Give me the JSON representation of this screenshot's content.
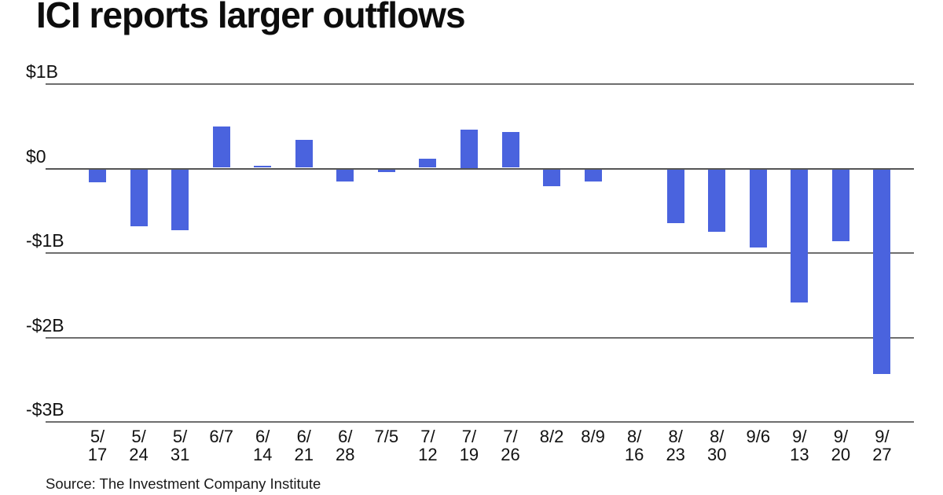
{
  "title": "ICI reports larger outflows",
  "source": "Source: The Investment Company Institute",
  "colors": {
    "bar": "#4a63de",
    "gridline": "#6e6e6e",
    "zero_line": "#555555",
    "text": "#111111",
    "title_text": "#0d0d0d",
    "background": "#ffffff"
  },
  "chart_data": {
    "type": "bar",
    "title": "ICI reports larger outflows",
    "unit": "billions of dollars",
    "categories": [
      "5/17",
      "5/24",
      "5/31",
      "6/7",
      "6/14",
      "6/21",
      "6/28",
      "7/5",
      "7/12",
      "7/19",
      "7/26",
      "8/2",
      "8/9",
      "8/16",
      "8/23",
      "8/30",
      "9/6",
      "9/13",
      "9/20",
      "9/27"
    ],
    "values": [
      -0.15,
      -0.67,
      -0.72,
      0.49,
      0.02,
      0.33,
      -0.14,
      -0.03,
      0.11,
      0.45,
      0.42,
      -0.2,
      -0.14,
      0,
      -0.64,
      -0.74,
      -0.93,
      -1.58,
      -0.85,
      -2.42
    ],
    "xlabel": "",
    "ylabel": "",
    "ylim": [
      -3,
      1
    ],
    "y_ticks": [
      {
        "label": "$1B",
        "value": 1
      },
      {
        "label": "$0",
        "value": 0
      },
      {
        "label": "-$1B",
        "value": -1
      },
      {
        "label": "-$2B",
        "value": -2
      },
      {
        "label": "-$3B",
        "value": -3
      }
    ],
    "grid": true,
    "legend": false,
    "source": "Source: The Investment Company Institute"
  }
}
